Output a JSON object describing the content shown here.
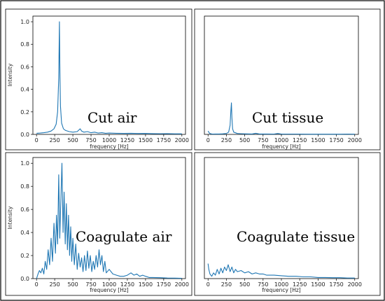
{
  "figure": {
    "border_color": "#000000",
    "line_color": "#1f77b4"
  },
  "chart_data": [
    {
      "type": "line",
      "panel_label": "Cut air",
      "xlabel": "frequency [Hz]",
      "ylabel": "Intensity",
      "xlim": [
        -50,
        2050
      ],
      "ylim": [
        0,
        1.05
      ],
      "xticks": [
        "0",
        "250",
        "500",
        "750",
        "1000",
        "1250",
        "1500",
        "1750",
        "2000"
      ],
      "yticks": [
        "0.0",
        "0.2",
        "0.4",
        "0.6",
        "0.8",
        "1.0"
      ],
      "series": [
        {
          "x": [
            0,
            50,
            100,
            150,
            200,
            240,
            270,
            290,
            305,
            315,
            322,
            330,
            345,
            370,
            400,
            450,
            500,
            560,
            600,
            620,
            650,
            700,
            750,
            800,
            850,
            900,
            950,
            1000,
            1100,
            1200,
            1300,
            1400,
            1500,
            1600,
            1700,
            1800,
            1900,
            2000
          ],
          "y": [
            0.01,
            0.012,
            0.015,
            0.02,
            0.03,
            0.05,
            0.09,
            0.2,
            0.5,
            1.0,
            0.55,
            0.25,
            0.1,
            0.05,
            0.035,
            0.025,
            0.02,
            0.025,
            0.05,
            0.03,
            0.02,
            0.025,
            0.015,
            0.02,
            0.012,
            0.015,
            0.01,
            0.012,
            0.01,
            0.009,
            0.01,
            0.008,
            0.009,
            0.007,
            0.006,
            0.007,
            0.005,
            0.005
          ]
        }
      ]
    },
    {
      "type": "line",
      "panel_label": "Cut tissue",
      "xlabel": "frequency [Hz]",
      "ylabel": "",
      "xlim": [
        -50,
        2050
      ],
      "ylim": [
        0,
        1.05
      ],
      "xticks": [
        "0",
        "250",
        "500",
        "750",
        "1000",
        "1250",
        "1500",
        "1750",
        "2000"
      ],
      "yticks": [],
      "series": [
        {
          "x": [
            0,
            10,
            20,
            40,
            60,
            100,
            150,
            200,
            250,
            280,
            300,
            310,
            318,
            325,
            335,
            350,
            400,
            450,
            500,
            600,
            650,
            700,
            800,
            900,
            950,
            1000,
            1200,
            1400,
            1600,
            1800,
            1900,
            2000
          ],
          "y": [
            0.03,
            0.02,
            0.01,
            0.005,
            0.003,
            0.004,
            0.004,
            0.005,
            0.008,
            0.02,
            0.08,
            0.2,
            0.28,
            0.15,
            0.05,
            0.02,
            0.008,
            0.006,
            0.005,
            0.004,
            0.01,
            0.004,
            0.004,
            0.003,
            0.008,
            0.003,
            0.003,
            0.002,
            0.002,
            0.002,
            0.003,
            0.002
          ]
        }
      ]
    },
    {
      "type": "line",
      "panel_label": "Coagulate air",
      "xlabel": "frequency [Hz]",
      "ylabel": "Intensity",
      "xlim": [
        -50,
        2050
      ],
      "ylim": [
        0,
        1.05
      ],
      "xticks": [
        "0",
        "250",
        "500",
        "750",
        "1000",
        "1250",
        "1500",
        "1750",
        "2000"
      ],
      "yticks": [
        "0.0",
        "0.2",
        "0.4",
        "0.6",
        "0.8",
        "1.0"
      ],
      "series": [
        {
          "x": [
            0,
            20,
            40,
            60,
            80,
            100,
            120,
            140,
            160,
            180,
            200,
            220,
            240,
            260,
            275,
            290,
            305,
            320,
            335,
            350,
            365,
            380,
            395,
            410,
            425,
            440,
            455,
            470,
            485,
            500,
            520,
            540,
            560,
            580,
            600,
            620,
            640,
            660,
            680,
            700,
            720,
            740,
            760,
            780,
            800,
            820,
            840,
            860,
            880,
            900,
            920,
            940,
            960,
            1000,
            1050,
            1100,
            1150,
            1200,
            1250,
            1300,
            1340,
            1380,
            1420,
            1460,
            1500,
            1550,
            1600,
            1700,
            1800,
            1900,
            2000
          ],
          "y": [
            0.0,
            0.04,
            0.07,
            0.05,
            0.09,
            0.04,
            0.15,
            0.08,
            0.25,
            0.12,
            0.35,
            0.15,
            0.48,
            0.22,
            0.55,
            0.3,
            0.9,
            0.35,
            0.7,
            1.0,
            0.4,
            0.75,
            0.3,
            0.65,
            0.25,
            0.55,
            0.2,
            0.45,
            0.15,
            0.35,
            0.12,
            0.3,
            0.08,
            0.22,
            0.1,
            0.18,
            0.06,
            0.2,
            0.07,
            0.24,
            0.09,
            0.2,
            0.06,
            0.15,
            0.08,
            0.2,
            0.1,
            0.25,
            0.12,
            0.2,
            0.06,
            0.15,
            0.05,
            0.08,
            0.04,
            0.03,
            0.02,
            0.02,
            0.03,
            0.05,
            0.03,
            0.04,
            0.02,
            0.03,
            0.02,
            0.01,
            0.01,
            0.008,
            0.005,
            0.004,
            0.003
          ]
        }
      ]
    },
    {
      "type": "line",
      "panel_label": "Coagulate tissue",
      "xlabel": "frequency [Hz]",
      "ylabel": "",
      "xlim": [
        -50,
        2050
      ],
      "ylim": [
        0,
        1.05
      ],
      "xticks": [
        "0",
        "250",
        "500",
        "750",
        "1000",
        "1250",
        "1500",
        "1750",
        "2000"
      ],
      "yticks": [],
      "series": [
        {
          "x": [
            0,
            10,
            25,
            50,
            75,
            100,
            125,
            150,
            175,
            200,
            225,
            250,
            275,
            300,
            325,
            350,
            375,
            400,
            450,
            500,
            550,
            600,
            650,
            700,
            750,
            800,
            900,
            1000,
            1100,
            1200,
            1300,
            1400,
            1500,
            1600,
            1700,
            1800,
            1900,
            2000
          ],
          "y": [
            0.13,
            0.08,
            0.04,
            0.02,
            0.05,
            0.03,
            0.08,
            0.04,
            0.09,
            0.05,
            0.1,
            0.07,
            0.12,
            0.06,
            0.1,
            0.05,
            0.08,
            0.06,
            0.07,
            0.05,
            0.06,
            0.04,
            0.05,
            0.04,
            0.04,
            0.03,
            0.03,
            0.025,
            0.02,
            0.02,
            0.015,
            0.015,
            0.01,
            0.01,
            0.008,
            0.008,
            0.005,
            0.005
          ]
        }
      ]
    }
  ]
}
